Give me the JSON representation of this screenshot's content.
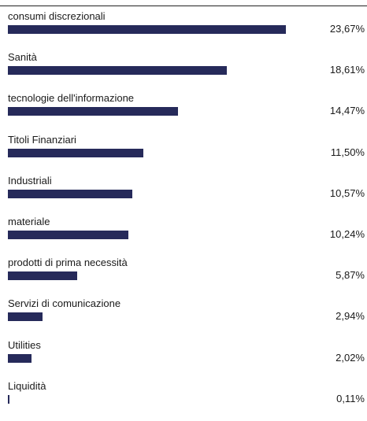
{
  "chart_data": {
    "type": "bar",
    "orientation": "horizontal",
    "categories": [
      "consumi discrezionali",
      "Sanità",
      "tecnologie dell'informazione",
      "Titoli Finanziari",
      "Industriali",
      "materiale",
      "prodotti di prima necessità",
      "Servizi di comunicazione",
      "Utilities",
      "Liquidità"
    ],
    "values": [
      23.67,
      18.61,
      14.47,
      11.5,
      10.57,
      10.24,
      5.87,
      2.94,
      2.02,
      0.11
    ],
    "value_labels": [
      "23,67%",
      "18,61%",
      "14,47%",
      "11,50%",
      "10,57%",
      "10,24%",
      "5,87%",
      "2,94%",
      "2,02%",
      "0,11%"
    ],
    "bar_color": "#262a5a",
    "xlim": [
      0,
      23.67
    ],
    "grid": false,
    "legend": "none"
  }
}
